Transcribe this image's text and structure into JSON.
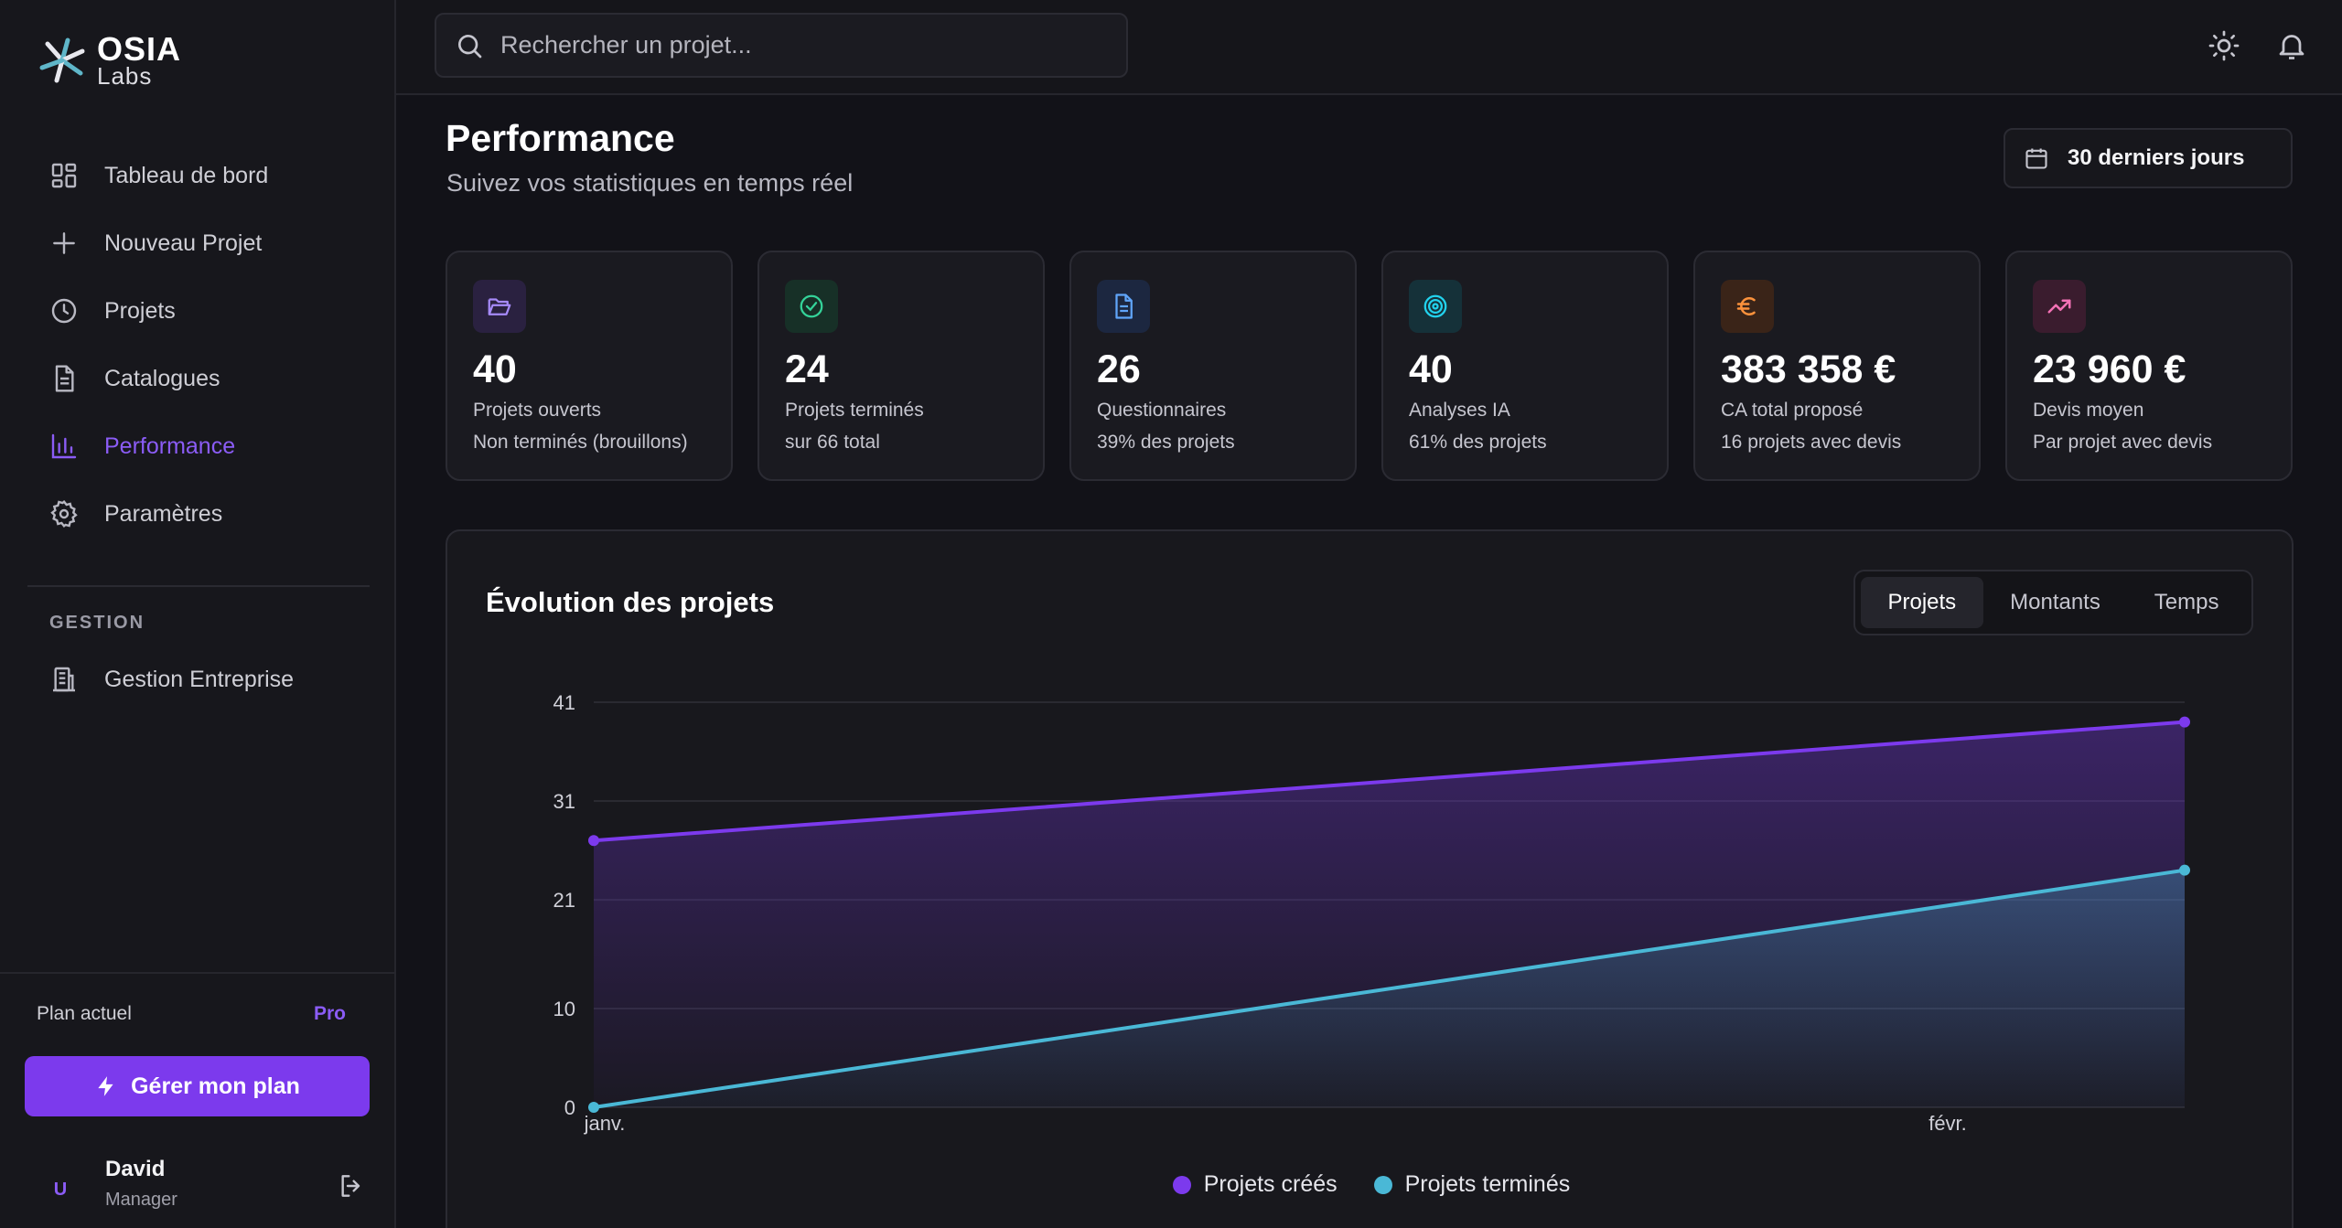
{
  "brand": {
    "name": "OSIA",
    "sub": "Labs"
  },
  "sidebar": {
    "items": [
      {
        "label": "Tableau de bord",
        "icon": "dashboard-icon"
      },
      {
        "label": "Nouveau Projet",
        "icon": "plus-icon"
      },
      {
        "label": "Projets",
        "icon": "clock-icon"
      },
      {
        "label": "Catalogues",
        "icon": "document-icon"
      },
      {
        "label": "Performance",
        "icon": "bar-chart-icon",
        "active": true
      },
      {
        "label": "Paramètres",
        "icon": "gear-icon"
      }
    ],
    "section_title": "GESTION",
    "management_item": "Gestion Entreprise",
    "plan_label": "Plan actuel",
    "plan_value": "Pro",
    "plan_button": "Gérer mon plan",
    "user": {
      "initial": "U",
      "name": "David",
      "role": "Manager"
    }
  },
  "header": {
    "search_placeholder": "Rechercher un projet..."
  },
  "page": {
    "title": "Performance",
    "subtitle": "Suivez vos statistiques en temps réel",
    "date_range": "30 derniers jours"
  },
  "stats": [
    {
      "value": "40",
      "label": "Projets ouverts",
      "sub": "Non terminés (brouillons)",
      "color": "#a78bfa",
      "bg": "#2a2140",
      "icon": "folder-open-icon"
    },
    {
      "value": "24",
      "label": "Projets terminés",
      "sub": "sur 66 total",
      "color": "#34d399",
      "bg": "#173027",
      "icon": "check-circle-icon"
    },
    {
      "value": "26",
      "label": "Questionnaires",
      "sub": "39% des projets",
      "color": "#60a5fa",
      "bg": "#1c2740",
      "icon": "file-text-icon"
    },
    {
      "value": "40",
      "label": "Analyses IA",
      "sub": "61% des projets",
      "color": "#22d3ee",
      "bg": "#153139",
      "icon": "target-icon"
    },
    {
      "value": "383 358 €",
      "label": "CA total proposé",
      "sub": "16 projets avec devis",
      "color": "#fb923c",
      "bg": "#3a2418",
      "icon": "euro-icon"
    },
    {
      "value": "23 960 €",
      "label": "Devis moyen",
      "sub": "Par projet avec devis",
      "color": "#f472b6",
      "bg": "#3a1c2e",
      "icon": "trending-up-icon"
    }
  ],
  "chart": {
    "title": "Évolution des projets",
    "tabs": [
      "Projets",
      "Montants",
      "Temps"
    ],
    "active_tab": 0
  },
  "chart_data": {
    "type": "area",
    "x": [
      "janv.",
      "févr."
    ],
    "yticks": [
      "0",
      "10",
      "21",
      "31",
      "41"
    ],
    "ylim": [
      0,
      41
    ],
    "grid": true,
    "legend": "bottom",
    "series": [
      {
        "name": "Projets créés",
        "values": [
          27,
          39
        ],
        "color": "#7c3aed"
      },
      {
        "name": "Projets terminés",
        "values": [
          0,
          24
        ],
        "color": "#4ab8d6"
      }
    ]
  }
}
